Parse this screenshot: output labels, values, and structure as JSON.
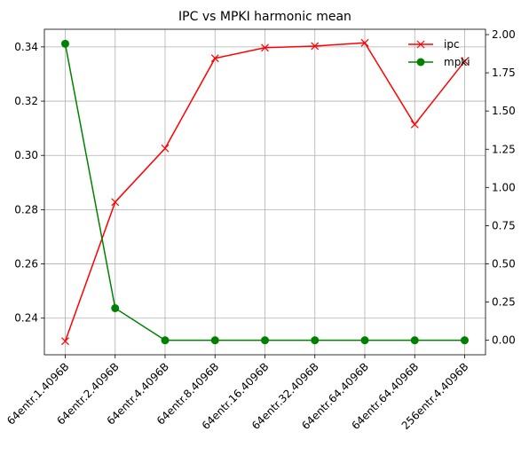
{
  "chart_data": {
    "type": "line",
    "title": "IPC vs MPKI harmonic mean",
    "categories": [
      "64entr.1.4096B",
      "64entr.2.4096B",
      "64entr.4.4096B",
      "64entr.8.4096B",
      "64entr.16.4096B",
      "64entr.32.4096B",
      "64entr.64.4096B",
      "64entr.64.4096B",
      "256entr.4.4096B"
    ],
    "series": [
      {
        "name": "ipc",
        "axis": "left",
        "color": "#ff0000",
        "marker": "x",
        "values": [
          0.2315,
          0.2828,
          0.3026,
          0.3358,
          0.3397,
          0.3403,
          0.3415,
          0.3114,
          0.3347
        ]
      },
      {
        "name": "mpki",
        "axis": "right",
        "color": "#008000",
        "marker": "circle",
        "values": [
          1.94,
          0.21,
          0.0,
          0.0,
          0.0,
          0.0,
          0.0,
          0.0,
          0.0
        ]
      }
    ],
    "y_left": {
      "lim": [
        0.2265,
        0.3465
      ],
      "ticks": [
        "0.24",
        "0.26",
        "0.28",
        "0.30",
        "0.32",
        "0.34"
      ],
      "tick_values": [
        0.24,
        0.26,
        0.28,
        0.3,
        0.32,
        0.34
      ]
    },
    "y_right": {
      "lim": [
        -0.095,
        2.035
      ],
      "ticks": [
        "0.00",
        "0.25",
        "0.50",
        "0.75",
        "1.00",
        "1.25",
        "1.50",
        "1.75",
        "2.00"
      ],
      "tick_values": [
        0.0,
        0.25,
        0.5,
        0.75,
        1.0,
        1.25,
        1.5,
        1.75,
        2.0
      ]
    },
    "grid": true,
    "legend_position": "top-right"
  }
}
